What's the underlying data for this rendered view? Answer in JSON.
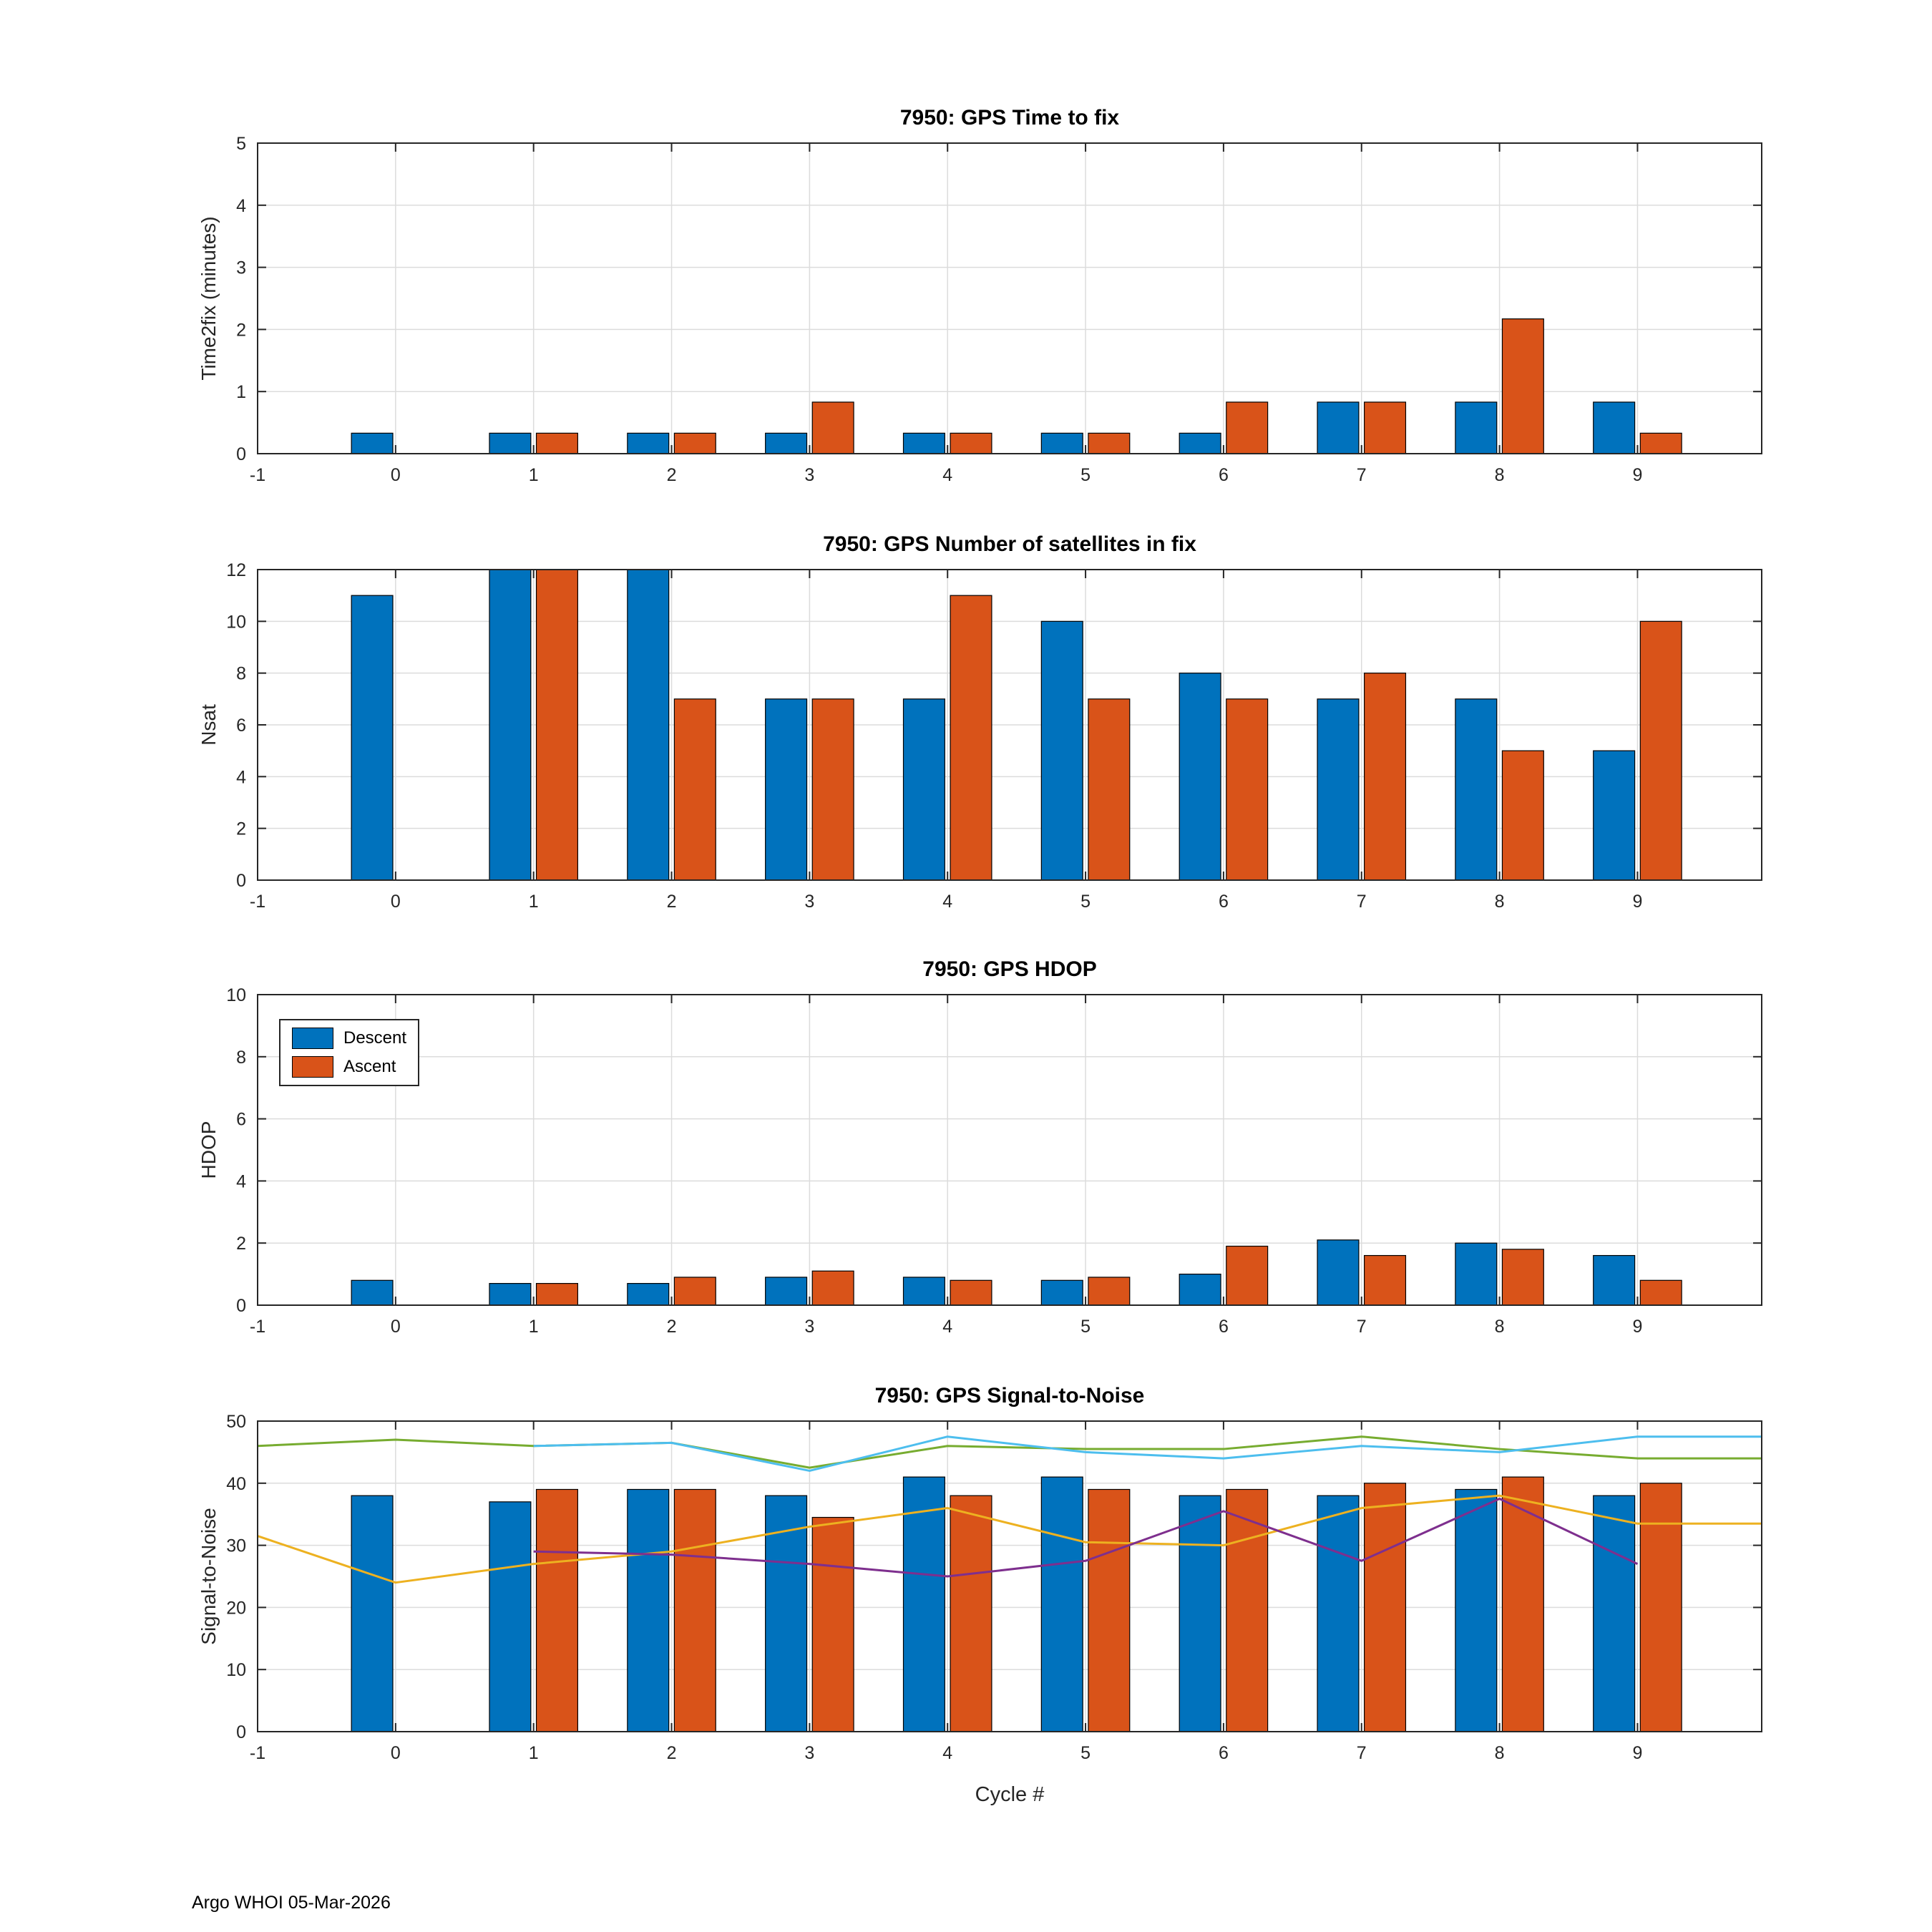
{
  "footer": {
    "text": "Argo WHOI 05-Mar-2026"
  },
  "colors": {
    "descent": "#0072BD",
    "ascent": "#D95319",
    "axes": "#262626",
    "grid": "#dcdcdc"
  },
  "chart_data": [
    {
      "type": "bar",
      "title": "7950: GPS Time to fix",
      "ylabel": "Time2fix (minutes)",
      "xlabel": "",
      "xlim": [
        -1,
        9.9
      ],
      "ylim": [
        0,
        5
      ],
      "xticks": [
        -1,
        0,
        1,
        2,
        3,
        4,
        5,
        6,
        7,
        8,
        9
      ],
      "yticks": [
        0,
        1,
        2,
        3,
        4,
        5
      ],
      "categories": [
        0,
        1,
        2,
        3,
        4,
        5,
        6,
        7,
        8,
        9
      ],
      "series": [
        {
          "name": "Descent",
          "color": "#0072BD",
          "values": [
            0.33,
            0.33,
            0.33,
            0.33,
            0.33,
            0.33,
            0.33,
            0.83,
            0.83,
            0.83
          ]
        },
        {
          "name": "Ascent",
          "color": "#D95319",
          "values": [
            null,
            0.33,
            0.33,
            0.83,
            0.33,
            0.33,
            0.83,
            0.83,
            2.17,
            0.33
          ]
        }
      ]
    },
    {
      "type": "bar",
      "title": "7950: GPS Number of satellites in fix",
      "ylabel": "Nsat",
      "xlabel": "",
      "xlim": [
        -1,
        9.9
      ],
      "ylim": [
        0,
        12
      ],
      "xticks": [
        -1,
        0,
        1,
        2,
        3,
        4,
        5,
        6,
        7,
        8,
        9
      ],
      "yticks": [
        0,
        2,
        4,
        6,
        8,
        10,
        12
      ],
      "categories": [
        0,
        1,
        2,
        3,
        4,
        5,
        6,
        7,
        8,
        9
      ],
      "series": [
        {
          "name": "Descent",
          "color": "#0072BD",
          "values": [
            11,
            12,
            12,
            7,
            7,
            10,
            8,
            7,
            7,
            5
          ]
        },
        {
          "name": "Ascent",
          "color": "#D95319",
          "values": [
            null,
            12,
            7,
            7,
            11,
            7,
            7,
            8,
            5,
            10
          ]
        }
      ]
    },
    {
      "type": "bar",
      "title": "7950: GPS HDOP",
      "ylabel": "HDOP",
      "xlabel": "",
      "xlim": [
        -1,
        9.9
      ],
      "ylim": [
        0,
        10
      ],
      "xticks": [
        -1,
        0,
        1,
        2,
        3,
        4,
        5,
        6,
        7,
        8,
        9
      ],
      "yticks": [
        0,
        2,
        4,
        6,
        8,
        10
      ],
      "categories": [
        0,
        1,
        2,
        3,
        4,
        5,
        6,
        7,
        8,
        9
      ],
      "legend": {
        "position": "top-left"
      },
      "series": [
        {
          "name": "Descent",
          "color": "#0072BD",
          "values": [
            0.8,
            0.7,
            0.7,
            0.9,
            0.9,
            0.8,
            1.0,
            2.1,
            2.0,
            1.6
          ]
        },
        {
          "name": "Ascent",
          "color": "#D95319",
          "values": [
            null,
            0.7,
            0.9,
            1.1,
            0.8,
            0.9,
            1.9,
            1.6,
            1.8,
            0.8
          ]
        }
      ]
    },
    {
      "type": "bar",
      "title": "7950: GPS Signal-to-Noise",
      "ylabel": "Signal-to-Noise",
      "xlabel": "Cycle #",
      "xlim": [
        -1,
        9.9
      ],
      "ylim": [
        0,
        50
      ],
      "xticks": [
        -1,
        0,
        1,
        2,
        3,
        4,
        5,
        6,
        7,
        8,
        9
      ],
      "yticks": [
        0,
        10,
        20,
        30,
        40,
        50
      ],
      "categories": [
        0,
        1,
        2,
        3,
        4,
        5,
        6,
        7,
        8,
        9
      ],
      "series": [
        {
          "name": "Descent",
          "color": "#0072BD",
          "values": [
            38,
            37,
            39,
            38,
            41,
            41,
            38,
            38,
            39,
            38
          ]
        },
        {
          "name": "Ascent",
          "color": "#D95319",
          "values": [
            null,
            39,
            39,
            34.5,
            38,
            39,
            39,
            40,
            41,
            40
          ]
        }
      ],
      "lines": [
        {
          "name": "snr-max-descent-line",
          "color": "#77AC30",
          "x": [
            -1,
            0,
            1,
            2,
            3,
            4,
            5,
            6,
            7,
            8,
            9,
            9.9
          ],
          "y": [
            46,
            47,
            46,
            46.5,
            42.5,
            46,
            45.5,
            45.5,
            47.5,
            45.5,
            44,
            44
          ]
        },
        {
          "name": "snr-max-ascent-line",
          "color": "#4DBEEE",
          "x": [
            1,
            2,
            3,
            4,
            5,
            6,
            7,
            8,
            9,
            9.9
          ],
          "y": [
            46,
            46.5,
            42,
            47.5,
            45,
            44,
            46,
            45,
            47.5,
            47.5
          ]
        },
        {
          "name": "snr-min-descent-line",
          "color": "#EDB120",
          "x": [
            -1,
            0,
            1,
            2,
            3,
            4,
            5,
            6,
            7,
            8,
            9,
            9.9
          ],
          "y": [
            31.5,
            24,
            27,
            29,
            33,
            36,
            30.5,
            30,
            36,
            38,
            33.5,
            33.5
          ]
        },
        {
          "name": "snr-min-ascent-line",
          "color": "#7E2F8E",
          "x": [
            1,
            2,
            3,
            4,
            5,
            6,
            7,
            8,
            9
          ],
          "y": [
            29,
            28.5,
            27,
            25,
            27.5,
            35.5,
            27.5,
            37.5,
            27
          ]
        }
      ]
    }
  ]
}
